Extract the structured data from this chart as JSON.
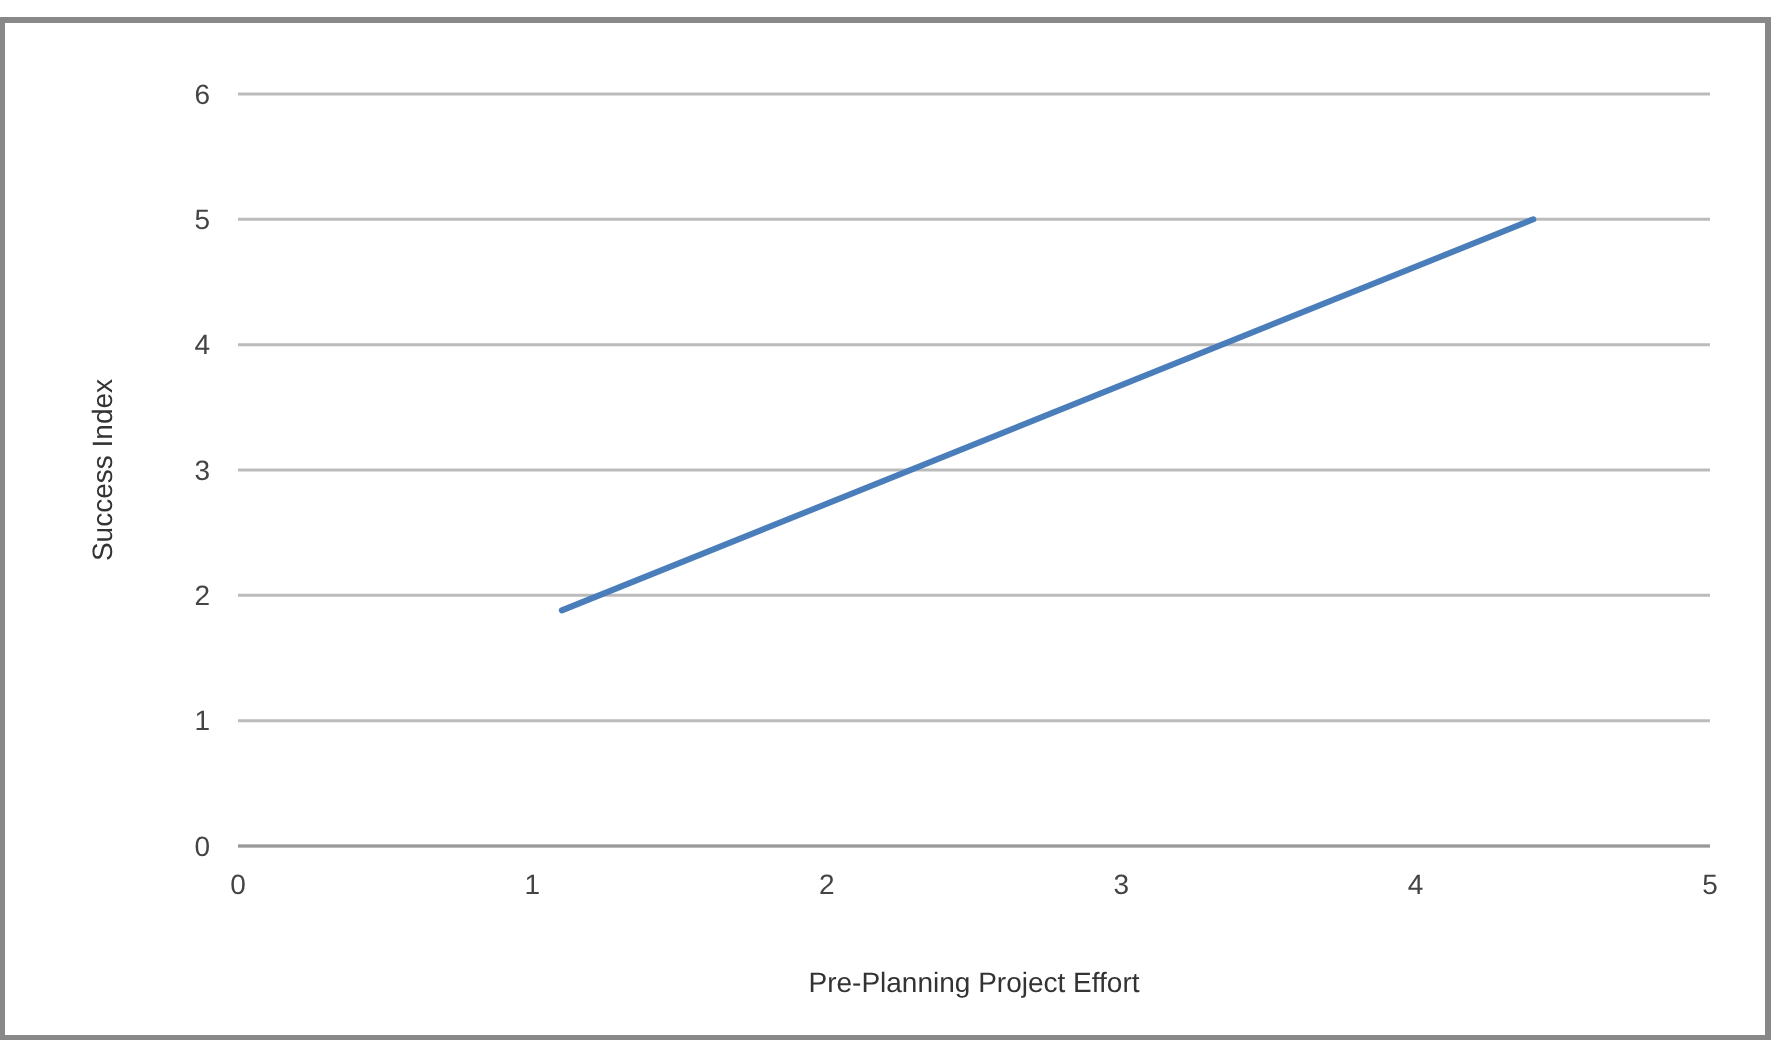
{
  "chart_data": {
    "type": "line",
    "xlabel": "Pre-Planning Project Effort",
    "ylabel": "Success Index",
    "series": [
      {
        "color": "#4a7ebb",
        "x": [
          1.1,
          4.4
        ],
        "values": [
          1.88,
          5.0
        ]
      }
    ],
    "xlim": [
      0,
      5
    ],
    "xticks": [
      0,
      1,
      2,
      3,
      4,
      5
    ],
    "ylim": [
      0,
      6
    ],
    "yticks": [
      0,
      1,
      2,
      3,
      4,
      5,
      6
    ],
    "grid": "y",
    "marker": "none",
    "line_style": "solid"
  }
}
